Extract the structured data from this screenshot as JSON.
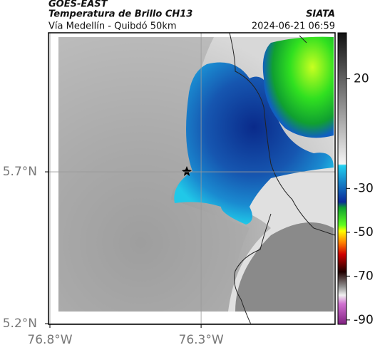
{
  "header": {
    "source": "GOES-EAST",
    "product": "Temperatura de Brillo CH13",
    "route": "Vía Medellín - Quibdó 50km",
    "agency": "SIATA",
    "datetime": "2024-06-21 06:59"
  },
  "map": {
    "xlim": [
      -76.8,
      -75.857
    ],
    "ylim": [
      5.2,
      6.158
    ],
    "xticks": [
      {
        "value": -76.8,
        "label": "76.8°W"
      },
      {
        "value": -76.3,
        "label": "76.3°W"
      }
    ],
    "yticks": [
      {
        "value": 5.2,
        "label": "5.2°N"
      },
      {
        "value": 5.7,
        "label": "5.7°N"
      }
    ],
    "grid": true
  },
  "colorbar": {
    "lim": [
      -92,
      41
    ],
    "ticks": [
      20,
      -30,
      -50,
      -70,
      -90
    ]
  }
}
